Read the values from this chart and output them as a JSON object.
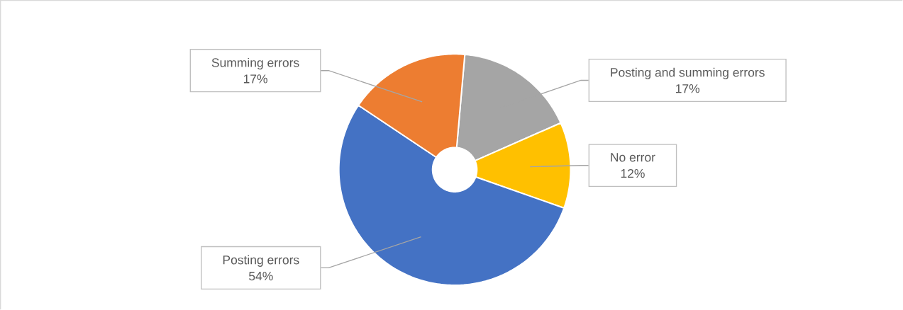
{
  "chart_data": {
    "type": "donut",
    "categories": [
      "Posting and summing errors",
      "No error",
      "Posting errors",
      "Summing errors"
    ],
    "values": [
      17,
      12,
      54,
      17
    ],
    "colors": [
      "#a5a5a5",
      "#ffc000",
      "#4472c4",
      "#ed7d31"
    ],
    "value_labels": [
      "17%",
      "12%",
      "54%",
      "17%"
    ]
  }
}
